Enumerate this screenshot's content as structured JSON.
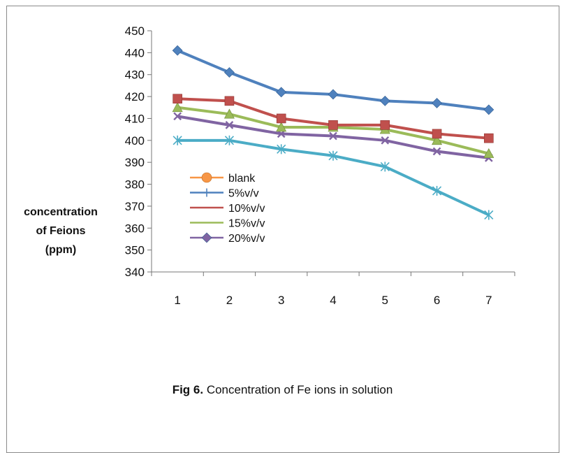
{
  "chart_data": {
    "type": "line",
    "title": "",
    "caption_bold": "Fig 6.",
    "caption_rest": " Concentration of Fe ions in solution",
    "ylabel_lines": [
      "concentration",
      "of Feions",
      "(ppm)"
    ],
    "xlabel": "",
    "categories": [
      "1",
      "2",
      "3",
      "4",
      "5",
      "6",
      "7"
    ],
    "ylim": [
      340,
      450
    ],
    "yticks": [
      340,
      350,
      360,
      370,
      380,
      390,
      400,
      410,
      420,
      430,
      440,
      450
    ],
    "grid": false,
    "legend_position": "center-left",
    "series": [
      {
        "name": "blank",
        "color": "#4F81BD",
        "marker": "diamond",
        "values": [
          441,
          431,
          422,
          421,
          418,
          417,
          414
        ]
      },
      {
        "name": "5%v/v",
        "color": "#4BACC6",
        "marker": "star",
        "values": [
          400,
          400,
          396,
          393,
          388,
          377,
          366
        ]
      },
      {
        "name": "10%v/v",
        "color": "#C0504D",
        "marker": "square",
        "values": [
          419,
          418,
          410,
          407,
          407,
          403,
          401
        ]
      },
      {
        "name": "15%v/v",
        "color": "#9BBB59",
        "marker": "triangle",
        "values": [
          415,
          412,
          406,
          406,
          405,
          400,
          394
        ]
      },
      {
        "name": "20%v/v",
        "color": "#8064A2",
        "marker": "x",
        "values": [
          411,
          407,
          403,
          402,
          400,
          395,
          392
        ]
      }
    ],
    "legend": [
      {
        "name": "blank",
        "color": "#F79646",
        "marker": "circle"
      },
      {
        "name": "5%v/v",
        "color": "#4F81BD",
        "marker": "plus"
      },
      {
        "name": "10%v/v",
        "color": "#C0504D",
        "marker": "none"
      },
      {
        "name": "15%v/v",
        "color": "#9BBB59",
        "marker": "none"
      },
      {
        "name": "20%v/v",
        "color": "#8064A2",
        "marker": "diamond"
      }
    ]
  }
}
